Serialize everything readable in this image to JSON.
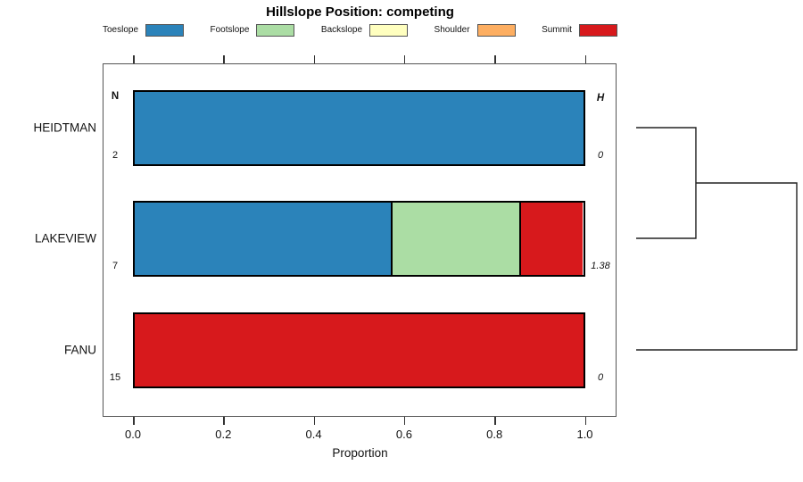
{
  "title": "Hillslope Position: competing",
  "chart_data": {
    "type": "bar",
    "stacked": true,
    "orientation": "horizontal",
    "title": "Hillslope Position: competing",
    "xlabel": "Proportion",
    "xlim": [
      0,
      1
    ],
    "x_ticks": [
      0.0,
      0.2,
      0.4,
      0.6,
      0.8,
      1.0
    ],
    "x_tick_labels": [
      "0.0",
      "0.2",
      "0.4",
      "0.6",
      "0.8",
      "1.0"
    ],
    "grid": false,
    "legend_position": "top",
    "left_header": "N",
    "right_header": "H",
    "categories": [
      {
        "label": "Toeslope",
        "color": "#2b83ba"
      },
      {
        "label": "Footslope",
        "color": "#abdda4"
      },
      {
        "label": "Backslope",
        "color": "#ffffbf"
      },
      {
        "label": "Shoulder",
        "color": "#fdae61"
      },
      {
        "label": "Summit",
        "color": "#d7191c"
      }
    ],
    "rows": [
      {
        "label": "HEIDTMAN",
        "n": "2",
        "h": "0",
        "segments": [
          {
            "category": "Toeslope",
            "value": 1.0
          }
        ]
      },
      {
        "label": "LAKEVIEW",
        "n": "7",
        "h": "1.38",
        "segments": [
          {
            "category": "Toeslope",
            "value": 0.571
          },
          {
            "category": "Footslope",
            "value": 0.286
          },
          {
            "category": "Summit",
            "value": 0.143
          }
        ]
      },
      {
        "label": "FANU",
        "n": "15",
        "h": "0",
        "segments": [
          {
            "category": "Summit",
            "value": 1.0
          }
        ]
      }
    ],
    "dendrogram": {
      "present": true,
      "joins": [
        {
          "a": "row:0",
          "b": "row:1",
          "depth": 0.372
        },
        {
          "a": "join:0",
          "b": "row:2",
          "depth": 1.0
        }
      ]
    }
  }
}
